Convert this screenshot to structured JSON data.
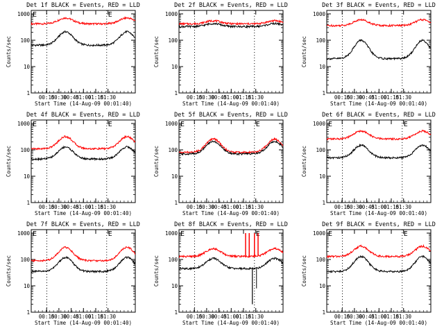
{
  "chart_data": [
    {
      "type": "line",
      "title": "Det 1f BLACK = Events, RED = LLD",
      "ylabel": "Counts/sec",
      "xlabel": "Start Time (14-Aug-09 00:01:40)",
      "yscale": "log",
      "ylim": [
        1,
        1000
      ],
      "x_ticks": [
        "00:15",
        "00:30",
        "00:45",
        "01:00",
        "01:15",
        "01:30"
      ],
      "marker_left": "E",
      "marker_right": "E",
      "series": [
        {
          "color": "#ff0000",
          "base": 420,
          "peak": 700,
          "dip": null,
          "spikes": []
        },
        {
          "color": "#000000",
          "base": 65,
          "peak": 210,
          "dip": null,
          "spikes": []
        }
      ]
    },
    {
      "type": "line",
      "title": "Det 2f BLACK = Events, RED = LLD",
      "ylabel": "Counts/sec",
      "xlabel": "Start Time (14-Aug-09 00:01:40)",
      "yscale": "log",
      "ylim": [
        1,
        1000
      ],
      "x_ticks": [
        "00:15",
        "00:30",
        "00:45",
        "01:00",
        "01:15",
        "01:30"
      ],
      "marker_left": "",
      "marker_right": "",
      "series": [
        {
          "color": "#ff0000",
          "base": 420,
          "peak": 550,
          "dip": null,
          "spikes": []
        },
        {
          "color": "#000000",
          "base": 330,
          "peak": 430,
          "dip": null,
          "spikes": []
        }
      ]
    },
    {
      "type": "line",
      "title": "Det 3f BLACK = Events, RED = LLD",
      "ylabel": "Counts/sec",
      "xlabel": "Start Time (14-Aug-09 00:01:40)",
      "yscale": "log",
      "ylim": [
        1,
        1000
      ],
      "x_ticks": [
        "00:15",
        "00:30",
        "00:45",
        "01:00",
        "01:15",
        "01:30"
      ],
      "marker_left": "",
      "marker_right": "",
      "series": [
        {
          "color": "#ff0000",
          "base": 360,
          "peak": 600,
          "dip": null,
          "spikes": []
        },
        {
          "color": "#000000",
          "base": 20,
          "peak": 100,
          "dip": null,
          "spikes": []
        }
      ]
    },
    {
      "type": "line",
      "title": "Det 4f BLACK = Events, RED = LLD",
      "ylabel": "Counts/sec",
      "xlabel": "Start Time (14-Aug-09 00:01:40)",
      "yscale": "log",
      "ylim": [
        1,
        1000
      ],
      "x_ticks": [
        "00:15",
        "00:30",
        "00:45",
        "01:00",
        "01:15",
        "01:30"
      ],
      "marker_left": "E",
      "marker_right": "E",
      "series": [
        {
          "color": "#ff0000",
          "base": 110,
          "peak": 320,
          "dip": null,
          "spikes": []
        },
        {
          "color": "#000000",
          "base": 45,
          "peak": 130,
          "dip": null,
          "spikes": []
        }
      ]
    },
    {
      "type": "line",
      "title": "Det 5f BLACK = Events, RED = LLD",
      "ylabel": "Counts/sec",
      "xlabel": "Start Time (14-Aug-09 00:01:40)",
      "yscale": "log",
      "ylim": [
        1,
        1000
      ],
      "x_ticks": [
        "00:15",
        "00:30",
        "00:45",
        "01:00",
        "01:15",
        "01:30"
      ],
      "marker_left": "E",
      "marker_right": "E",
      "series": [
        {
          "color": "#ff0000",
          "base": 80,
          "peak": 260,
          "dip": null,
          "spikes": []
        },
        {
          "color": "#000000",
          "base": 70,
          "peak": 210,
          "dip": null,
          "spikes": []
        }
      ]
    },
    {
      "type": "line",
      "title": "Det 6f BLACK = Events, RED = LLD",
      "ylabel": "Counts/sec",
      "xlabel": "Start Time (14-Aug-09 00:01:40)",
      "yscale": "log",
      "ylim": [
        1,
        1000
      ],
      "x_ticks": [
        "00:15",
        "00:30",
        "00:45",
        "01:00",
        "01:15",
        "01:30"
      ],
      "marker_left": "E",
      "marker_right": "E",
      "series": [
        {
          "color": "#ff0000",
          "base": 260,
          "peak": 520,
          "dip": null,
          "spikes": []
        },
        {
          "color": "#000000",
          "base": 50,
          "peak": 150,
          "dip": null,
          "spikes": []
        }
      ]
    },
    {
      "type": "line",
      "title": "Det 7f BLACK = Events, RED = LLD",
      "ylabel": "Counts/sec",
      "xlabel": "Start Time (14-Aug-09 00:01:40)",
      "yscale": "log",
      "ylim": [
        1,
        1000
      ],
      "x_ticks": [
        "00:15",
        "00:30",
        "00:45",
        "01:00",
        "01:15",
        "01:30"
      ],
      "marker_left": "E",
      "marker_right": "E",
      "series": [
        {
          "color": "#ff0000",
          "base": 90,
          "peak": 290,
          "dip": null,
          "spikes": []
        },
        {
          "color": "#000000",
          "base": 35,
          "peak": 120,
          "dip": null,
          "spikes": []
        }
      ]
    },
    {
      "type": "line",
      "title": "Det 8f BLACK = Events, RED = LLD",
      "ylabel": "Counts/sec",
      "xlabel": "Start Time (14-Aug-09 00:01:40)",
      "yscale": "log",
      "ylim": [
        1,
        1000
      ],
      "x_ticks": [
        "00:15",
        "00:30",
        "00:45",
        "01:00",
        "01:15",
        "01:30"
      ],
      "marker_left": "E",
      "marker_right": "E",
      "series": [
        {
          "color": "#ff0000",
          "base": 130,
          "peak": 260,
          "dip": null,
          "spikes": [
            [
              0.64,
              1000
            ],
            [
              0.675,
              1000
            ],
            [
              0.725,
              1000
            ],
            [
              0.76,
              1000
            ]
          ]
        },
        {
          "color": "#000000",
          "base": 45,
          "peak": 110,
          "dip": [
            0.705,
            2
          ],
          "spikes": []
        }
      ]
    },
    {
      "type": "line",
      "title": "Det 9f BLACK = Events, RED = LLD",
      "ylabel": "Counts/sec",
      "xlabel": "Start Time (14-Aug-09 00:01:40)",
      "yscale": "log",
      "ylim": [
        1,
        1000
      ],
      "x_ticks": [
        "00:15",
        "00:30",
        "00:45",
        "01:00",
        "01:15",
        "01:30"
      ],
      "marker_left": "E",
      "marker_right": "E",
      "series": [
        {
          "color": "#ff0000",
          "base": 130,
          "peak": 320,
          "dip": null,
          "spikes": []
        },
        {
          "color": "#000000",
          "base": 35,
          "peak": 130,
          "dip": null,
          "spikes": []
        }
      ]
    }
  ]
}
